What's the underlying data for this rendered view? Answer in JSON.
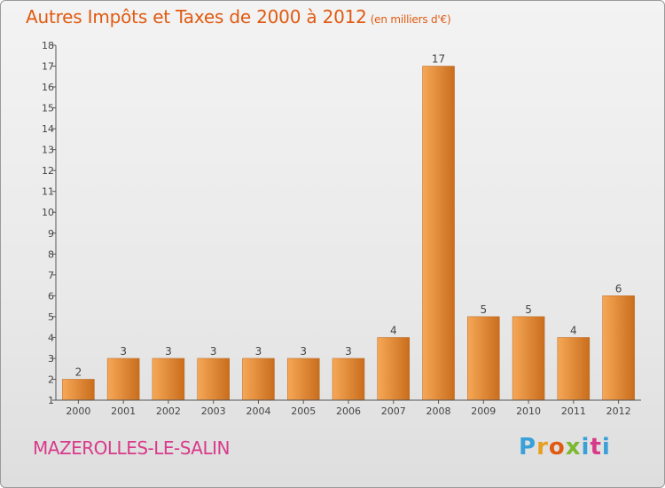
{
  "header": {
    "title": "Autres Impôts et Taxes de 2000 à 2012",
    "unit": "(en milliers d'€)"
  },
  "footer": {
    "city": "MAZEROLLES-LE-SALIN",
    "logo": [
      "P",
      "r",
      "o",
      "x",
      "i",
      "t",
      "i"
    ]
  },
  "colors": {
    "title": "#e05a10",
    "city": "#d83a8a",
    "bar_light": "#f6a857",
    "bar_dark": "#c96d1c"
  },
  "chart_data": {
    "type": "bar",
    "categories": [
      "2000",
      "2001",
      "2002",
      "2003",
      "2004",
      "2005",
      "2006",
      "2007",
      "2008",
      "2009",
      "2010",
      "2011",
      "2012"
    ],
    "values": [
      2,
      3,
      3,
      3,
      3,
      3,
      3,
      4,
      17,
      5,
      5,
      4,
      6
    ],
    "ylim": [
      1,
      18
    ],
    "yticks": [
      1,
      2,
      3,
      4,
      5,
      6,
      7,
      8,
      9,
      10,
      11,
      12,
      13,
      14,
      15,
      16,
      17,
      18
    ],
    "grid": false,
    "legend": "none"
  }
}
